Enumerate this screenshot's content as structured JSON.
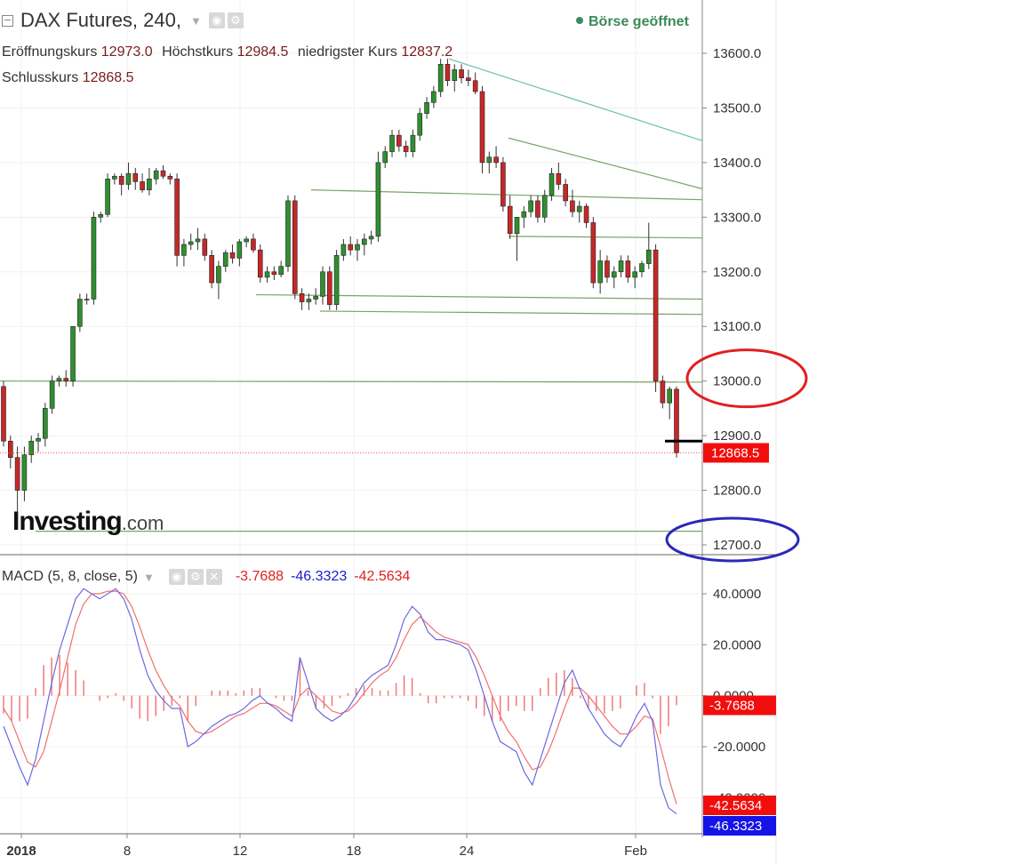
{
  "header": {
    "symbol": "DAX Futures, 240,",
    "market_status": "Börse geöffnet",
    "ohlc": {
      "open_label": "Eröffnungskurs",
      "open": "12973.0",
      "high_label": "Höchstkurs",
      "high": "12984.5",
      "low_label": "niedrigster Kurs",
      "low": "12837.2",
      "close_label": "Schlusskurs",
      "close": "12868.5"
    }
  },
  "logo": {
    "main": "Investing",
    "suffix": ".com"
  },
  "macd_header": {
    "label": "MACD (5, 8, close, 5)",
    "histogram": "-3.7688",
    "macd": "-46.3323",
    "signal": "-42.5634"
  },
  "icons": {
    "collapse": "collapse-square-icon",
    "caret": "chevron-down-icon",
    "settings": "gear-icon",
    "visibility": "eye-icon",
    "close": "close-icon",
    "status": "dot-icon"
  },
  "colors": {
    "up": "#2f8f2f",
    "down": "#c62828",
    "trendline": "#7aa36a",
    "upper_trendline": "#6dbfa8",
    "macd_line": "#6a6ae0",
    "signal_line": "#f07070",
    "histogram": "#f07070",
    "price_badge": "#f20d0d",
    "macd_badge": "#1414e6",
    "red_circle": "#e02020",
    "blue_circle": "#2a2ab8",
    "status": "#3a8a5b"
  },
  "chart_data": [
    {
      "type": "candlestick",
      "title": "DAX Futures, 240,",
      "y_ticks": [
        "13600.0",
        "13500.0",
        "13400.0",
        "13300.0",
        "13200.0",
        "13100.0",
        "13000.0",
        "12900.0",
        "12800.0",
        "12700.0"
      ],
      "ylim": [
        12650,
        13690
      ],
      "x_ticks": [
        "2018",
        "8",
        "12",
        "18",
        "24",
        "Feb"
      ],
      "last_price_label": "12868.5",
      "last_price": 12868.5,
      "candle_ohlc": [
        [
          12990,
          13000,
          12880,
          12890
        ],
        [
          12890,
          12900,
          12840,
          12860
        ],
        [
          12860,
          12880,
          12760,
          12800
        ],
        [
          12800,
          12880,
          12780,
          12865
        ],
        [
          12865,
          12900,
          12850,
          12890
        ],
        [
          12890,
          12905,
          12870,
          12895
        ],
        [
          12895,
          12960,
          12880,
          12950
        ],
        [
          12950,
          13010,
          12940,
          13000
        ],
        [
          13000,
          13010,
          12990,
          13005
        ],
        [
          13005,
          13020,
          12990,
          13000
        ],
        [
          13000,
          13100,
          12990,
          13100
        ],
        [
          13100,
          13160,
          13090,
          13150
        ],
        [
          13150,
          13160,
          13140,
          13150
        ],
        [
          13150,
          13310,
          13140,
          13300
        ],
        [
          13300,
          13310,
          13290,
          13305
        ],
        [
          13305,
          13380,
          13300,
          13370
        ],
        [
          13370,
          13380,
          13360,
          13375
        ],
        [
          13375,
          13380,
          13340,
          13360
        ],
        [
          13360,
          13400,
          13350,
          13380
        ],
        [
          13380,
          13390,
          13350,
          13365
        ],
        [
          13365,
          13380,
          13345,
          13350
        ],
        [
          13350,
          13390,
          13340,
          13370
        ],
        [
          13370,
          13390,
          13360,
          13385
        ],
        [
          13385,
          13395,
          13370,
          13375
        ],
        [
          13375,
          13380,
          13360,
          13370
        ],
        [
          13370,
          13380,
          13210,
          13230
        ],
        [
          13230,
          13260,
          13210,
          13250
        ],
        [
          13250,
          13270,
          13240,
          13255
        ],
        [
          13255,
          13280,
          13240,
          13260
        ],
        [
          13260,
          13270,
          13220,
          13230
        ],
        [
          13230,
          13240,
          13170,
          13180
        ],
        [
          13180,
          13220,
          13150,
          13210
        ],
        [
          13210,
          13240,
          13200,
          13235
        ],
        [
          13235,
          13250,
          13215,
          13225
        ],
        [
          13225,
          13260,
          13210,
          13255
        ],
        [
          13255,
          13265,
          13245,
          13260
        ],
        [
          13260,
          13270,
          13235,
          13240
        ],
        [
          13240,
          13250,
          13180,
          13190
        ],
        [
          13190,
          13210,
          13180,
          13200
        ],
        [
          13200,
          13210,
          13185,
          13195
        ],
        [
          13195,
          13220,
          13190,
          13210
        ],
        [
          13210,
          13340,
          13200,
          13330
        ],
        [
          13330,
          13340,
          13150,
          13160
        ],
        [
          13160,
          13170,
          13130,
          13145
        ],
        [
          13145,
          13160,
          13130,
          13150
        ],
        [
          13150,
          13170,
          13140,
          13155
        ],
        [
          13155,
          13210,
          13140,
          13200
        ],
        [
          13200,
          13210,
          13130,
          13140
        ],
        [
          13140,
          13240,
          13130,
          13230
        ],
        [
          13230,
          13260,
          13220,
          13250
        ],
        [
          13250,
          13265,
          13230,
          13240
        ],
        [
          13240,
          13260,
          13220,
          13250
        ],
        [
          13250,
          13270,
          13230,
          13260
        ],
        [
          13260,
          13275,
          13250,
          13265
        ],
        [
          13265,
          13420,
          13255,
          13400
        ],
        [
          13400,
          13430,
          13390,
          13420
        ],
        [
          13420,
          13460,
          13410,
          13450
        ],
        [
          13450,
          13460,
          13420,
          13430
        ],
        [
          13430,
          13440,
          13410,
          13420
        ],
        [
          13420,
          13460,
          13410,
          13450
        ],
        [
          13450,
          13500,
          13440,
          13490
        ],
        [
          13490,
          13520,
          13480,
          13510
        ],
        [
          13510,
          13540,
          13500,
          13530
        ],
        [
          13530,
          13590,
          13520,
          13580
        ],
        [
          13580,
          13590,
          13540,
          13550
        ],
        [
          13550,
          13580,
          13530,
          13570
        ],
        [
          13570,
          13580,
          13545,
          13555
        ],
        [
          13555,
          13570,
          13540,
          13550
        ],
        [
          13550,
          13565,
          13525,
          13530
        ],
        [
          13530,
          13540,
          13380,
          13400
        ],
        [
          13400,
          13420,
          13380,
          13410
        ],
        [
          13410,
          13430,
          13390,
          13400
        ],
        [
          13400,
          13410,
          13310,
          13320
        ],
        [
          13320,
          13340,
          13260,
          13270
        ],
        [
          13270,
          13300,
          13220,
          13300
        ],
        [
          13300,
          13320,
          13280,
          13310
        ],
        [
          13310,
          13340,
          13300,
          13330
        ],
        [
          13330,
          13340,
          13290,
          13300
        ],
        [
          13300,
          13350,
          13290,
          13340
        ],
        [
          13340,
          13390,
          13330,
          13380
        ],
        [
          13380,
          13400,
          13350,
          13360
        ],
        [
          13360,
          13370,
          13320,
          13330
        ],
        [
          13330,
          13350,
          13300,
          13310
        ],
        [
          13310,
          13330,
          13290,
          13320
        ],
        [
          13320,
          13325,
          13280,
          13290
        ],
        [
          13290,
          13300,
          13170,
          13180
        ],
        [
          13180,
          13240,
          13160,
          13220
        ],
        [
          13220,
          13230,
          13180,
          13190
        ],
        [
          13190,
          13210,
          13170,
          13200
        ],
        [
          13200,
          13230,
          13190,
          13220
        ],
        [
          13220,
          13230,
          13180,
          13190
        ],
        [
          13190,
          13210,
          13170,
          13200
        ],
        [
          13200,
          13220,
          13190,
          13215
        ],
        [
          13215,
          13290,
          13205,
          13240
        ],
        [
          13240,
          13250,
          12980,
          13000
        ],
        [
          13000,
          13010,
          12950,
          12960
        ],
        [
          12960,
          12990,
          12930,
          12985
        ],
        [
          12985,
          12990,
          12860,
          12868.5
        ]
      ],
      "horizontal_levels": [
        13000,
        12725,
        12868.5
      ],
      "annotations": [
        {
          "shape": "ellipse",
          "color": "red",
          "around_price": 13000
        },
        {
          "shape": "ellipse",
          "color": "blue",
          "around_price": 12700
        }
      ]
    },
    {
      "type": "line",
      "title": "MACD (5, 8, close, 5)",
      "y_ticks": [
        "40.0000",
        "20.0000",
        "0.0000",
        "-20.0000",
        "-40.0000"
      ],
      "ylim": [
        -55,
        50
      ],
      "x_ticks": [
        "2018",
        "8",
        "12",
        "18",
        "24",
        "Feb"
      ],
      "series": [
        {
          "name": "MACD",
          "values": [
            -12,
            -20,
            -28,
            -35,
            -25,
            -10,
            5,
            18,
            28,
            38,
            42,
            40,
            38,
            40,
            42,
            38,
            30,
            18,
            8,
            2,
            -2,
            -5,
            -5,
            -20,
            -18,
            -15,
            -12,
            -10,
            -8,
            -7,
            -5,
            -2,
            0,
            -3,
            -5,
            -8,
            -10,
            15,
            5,
            -5,
            -8,
            -10,
            -8,
            -5,
            0,
            5,
            8,
            10,
            12,
            20,
            30,
            35,
            32,
            25,
            22,
            22,
            21,
            20,
            18,
            10,
            0,
            -10,
            -18,
            -20,
            -22,
            -30,
            -35,
            -25,
            -15,
            -5,
            5,
            10,
            2,
            -5,
            -10,
            -15,
            -18,
            -20,
            -15,
            -8,
            -3,
            -10,
            -35,
            -44,
            -46.3323
          ]
        },
        {
          "name": "Signal",
          "values": [
            -5,
            -10,
            -18,
            -26,
            -28,
            -22,
            -10,
            2,
            15,
            28,
            36,
            40,
            40,
            41,
            41,
            40,
            35,
            27,
            18,
            10,
            4,
            -1,
            -4,
            -10,
            -14,
            -15,
            -14,
            -12,
            -10,
            -8,
            -7,
            -5,
            -3,
            -3,
            -4,
            -6,
            -8,
            0,
            3,
            0,
            -3,
            -6,
            -7,
            -6,
            -3,
            1,
            5,
            8,
            10,
            15,
            22,
            28,
            31,
            28,
            25,
            23,
            22,
            21,
            20,
            15,
            8,
            0,
            -8,
            -14,
            -18,
            -24,
            -29,
            -28,
            -22,
            -14,
            -5,
            3,
            3,
            0,
            -4,
            -8,
            -12,
            -15,
            -15,
            -12,
            -8,
            -9,
            -20,
            -32,
            -42.5634
          ]
        },
        {
          "name": "Histogram",
          "values": [
            -7,
            -10,
            -10,
            -9,
            3,
            12,
            15,
            16,
            13,
            10,
            6,
            0,
            -2,
            -1,
            1,
            -2,
            -5,
            -9,
            -10,
            -8,
            -6,
            -4,
            -1,
            -10,
            -4,
            0,
            2,
            2,
            2,
            1,
            2,
            3,
            3,
            0,
            -1,
            -2,
            -2,
            15,
            2,
            -5,
            -5,
            -4,
            -1,
            1,
            3,
            4,
            3,
            2,
            2,
            5,
            8,
            7,
            1,
            -3,
            -3,
            -1,
            -1,
            -1,
            -2,
            -5,
            -8,
            -10,
            -10,
            -6,
            -4,
            -6,
            -6,
            3,
            7,
            9,
            10,
            7,
            -1,
            -5,
            -6,
            -7,
            -6,
            -5,
            0,
            4,
            5,
            -1,
            -15,
            -12,
            -3.7688
          ]
        }
      ],
      "value_labels": [
        "-3.7688",
        "-42.5634",
        "-46.3323"
      ]
    }
  ]
}
